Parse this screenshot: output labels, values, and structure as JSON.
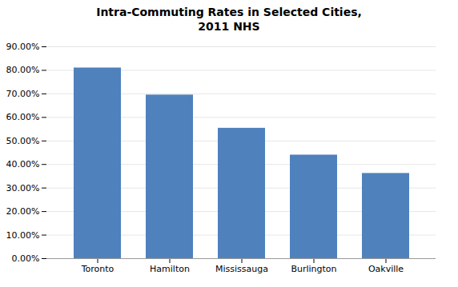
{
  "chart_data": {
    "type": "bar",
    "title": "Intra-Commuting Rates in Selected Cities,\n2011 NHS",
    "categories": [
      "Toronto",
      "Hamilton",
      "Mississauga",
      "Burlington",
      "Oakville"
    ],
    "values": [
      0.81,
      0.695,
      0.554,
      0.44,
      0.362
    ],
    "color": "#4F81BD",
    "ylim": [
      0.0,
      0.9
    ],
    "yticks": [
      {
        "value": 0.0,
        "label": "0.00%"
      },
      {
        "value": 0.1,
        "label": "10.00%"
      },
      {
        "value": 0.2,
        "label": "20.00%"
      },
      {
        "value": 0.3,
        "label": "30.00%"
      },
      {
        "value": 0.4,
        "label": "40.00%"
      },
      {
        "value": 0.5,
        "label": "50.00%"
      },
      {
        "value": 0.6,
        "label": "60.00%"
      },
      {
        "value": 0.7,
        "label": "70.00%"
      },
      {
        "value": 0.8,
        "label": "80.00%"
      },
      {
        "value": 0.9,
        "label": "90.00%"
      }
    ],
    "grid": true
  }
}
